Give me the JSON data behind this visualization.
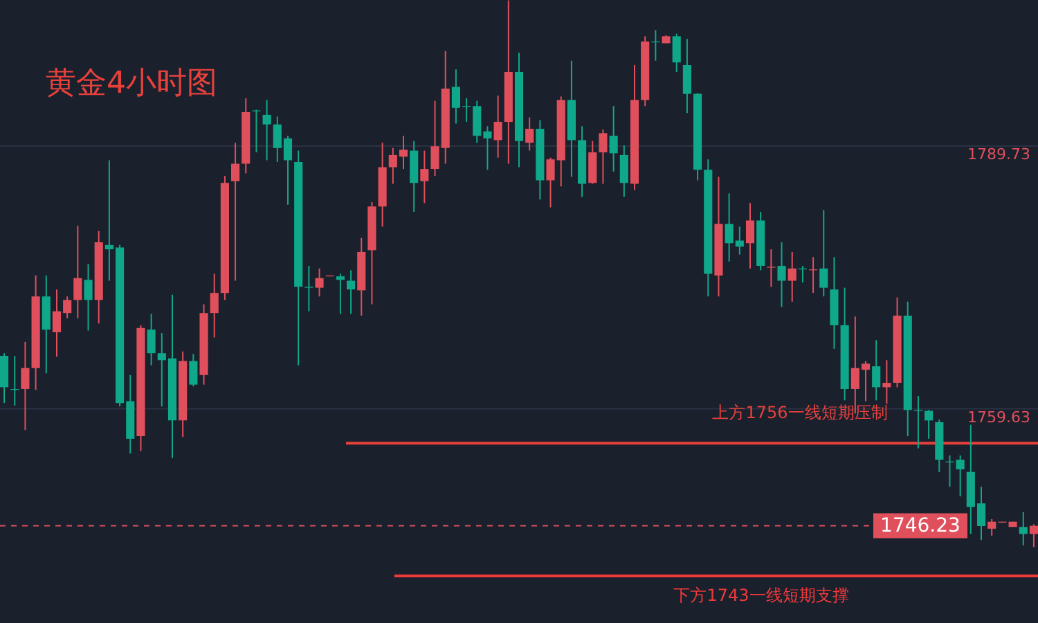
{
  "chart_data": {
    "type": "candlestick",
    "title": "黄金4小时图",
    "categories": [
      null,
      null,
      null,
      null,
      null,
      null,
      null,
      null,
      null,
      null,
      null,
      null,
      null,
      null,
      null,
      null,
      null,
      null,
      null,
      null,
      null,
      null,
      null,
      null,
      null,
      null,
      null,
      null,
      null,
      null,
      null,
      null,
      null,
      null,
      null,
      null,
      null,
      null,
      null,
      null,
      null,
      null,
      null,
      null,
      null,
      null,
      null,
      null,
      null,
      null,
      null,
      null,
      null,
      null,
      null,
      null,
      null,
      null,
      null,
      null,
      null,
      null,
      null,
      null,
      null,
      null,
      null,
      null,
      null,
      null,
      null,
      null,
      null,
      null,
      null,
      null,
      null,
      null,
      null,
      null,
      null,
      null,
      null,
      null,
      null,
      null,
      null,
      null,
      null,
      null,
      null,
      null,
      null,
      null,
      null,
      null,
      null,
      null,
      null
    ],
    "ohlc": [
      [
        1765.7,
        1766.0,
        1760.3,
        1762.1
      ],
      [
        1761.9,
        1765.7,
        1760.0,
        1761.8
      ],
      [
        1761.9,
        1767.3,
        1757.2,
        1764.3
      ],
      [
        1764.3,
        1774.9,
        1761.8,
        1772.5
      ],
      [
        1772.5,
        1774.9,
        1763.7,
        1768.7
      ],
      [
        1768.4,
        1773.3,
        1765.6,
        1770.8
      ],
      [
        1770.6,
        1772.5,
        1770.0,
        1772.1
      ],
      [
        1772.1,
        1780.6,
        1770.0,
        1774.6
      ],
      [
        1774.4,
        1776.2,
        1768.6,
        1772.1
      ],
      [
        1772.1,
        1780.0,
        1769.4,
        1778.7
      ],
      [
        1778.4,
        1788.1,
        1774.3,
        1777.9
      ],
      [
        1778.1,
        1778.4,
        1759.9,
        1760.3
      ],
      [
        1760.5,
        1763.5,
        1754.5,
        1756.2
      ],
      [
        1756.5,
        1769.2,
        1754.8,
        1768.9
      ],
      [
        1768.7,
        1770.5,
        1764.6,
        1766.0
      ],
      [
        1766.0,
        1768.3,
        1759.9,
        1765.2
      ],
      [
        1765.4,
        1772.7,
        1754.0,
        1758.3
      ],
      [
        1758.3,
        1766.2,
        1756.4,
        1765.1
      ],
      [
        1765.1,
        1765.9,
        1762.2,
        1762.4
      ],
      [
        1763.5,
        1771.6,
        1762.4,
        1770.6
      ],
      [
        1770.6,
        1775.1,
        1767.8,
        1772.9
      ],
      [
        1772.9,
        1786.3,
        1772.1,
        1785.5
      ],
      [
        1785.7,
        1790.1,
        1774.3,
        1787.7
      ],
      [
        1787.7,
        1795.2,
        1786.6,
        1793.6
      ],
      [
        1793.8,
        1793.9,
        1789.0,
        1793.7
      ],
      [
        1793.3,
        1795.0,
        1788.1,
        1792.2
      ],
      [
        1792.2,
        1793.1,
        1787.9,
        1789.5
      ],
      [
        1790.6,
        1790.9,
        1783.0,
        1788.1
      ],
      [
        1787.9,
        1789.2,
        1764.6,
        1773.6
      ],
      [
        1773.6,
        1776.0,
        1770.8,
        1773.5
      ],
      [
        1773.5,
        1775.7,
        1772.5,
        1774.6
      ],
      [
        1774.8,
        1774.9,
        1774.8,
        1774.9
      ],
      [
        1774.8,
        1775.1,
        1770.5,
        1774.4
      ],
      [
        1774.3,
        1775.5,
        1770.5,
        1773.3
      ],
      [
        1773.2,
        1779.2,
        1770.3,
        1777.6
      ],
      [
        1777.8,
        1783.3,
        1771.6,
        1782.8
      ],
      [
        1782.8,
        1790.1,
        1780.5,
        1787.3
      ],
      [
        1787.3,
        1789.5,
        1785.4,
        1788.7
      ],
      [
        1788.5,
        1790.9,
        1787.1,
        1789.3
      ],
      [
        1789.2,
        1790.3,
        1782.2,
        1785.5
      ],
      [
        1785.7,
        1789.2,
        1783.2,
        1787.1
      ],
      [
        1787.1,
        1794.9,
        1786.3,
        1789.7
      ],
      [
        1789.5,
        1800.6,
        1787.7,
        1796.3
      ],
      [
        1796.5,
        1798.5,
        1792.3,
        1794.1
      ],
      [
        1794.3,
        1795.2,
        1792.5,
        1794.2
      ],
      [
        1794.3,
        1794.9,
        1790.1,
        1790.9
      ],
      [
        1791.4,
        1792.0,
        1787.0,
        1790.6
      ],
      [
        1790.4,
        1795.5,
        1788.4,
        1792.5
      ],
      [
        1792.5,
        1806.4,
        1787.7,
        1798.2
      ],
      [
        1798.2,
        1800.4,
        1787.3,
        1790.3
      ],
      [
        1790.1,
        1793.0,
        1789.2,
        1791.7
      ],
      [
        1791.7,
        1792.7,
        1783.6,
        1785.8
      ],
      [
        1785.8,
        1788.4,
        1782.7,
        1788.2
      ],
      [
        1788.1,
        1795.4,
        1785.1,
        1795.0
      ],
      [
        1795.0,
        1799.5,
        1786.2,
        1790.4
      ],
      [
        1790.4,
        1792.0,
        1783.9,
        1785.4
      ],
      [
        1785.5,
        1790.3,
        1785.4,
        1789.0
      ],
      [
        1789.0,
        1791.6,
        1785.4,
        1791.2
      ],
      [
        1790.9,
        1794.3,
        1786.8,
        1788.9
      ],
      [
        1788.7,
        1789.8,
        1783.9,
        1785.5
      ],
      [
        1785.4,
        1799.0,
        1784.7,
        1795.0
      ],
      [
        1795.0,
        1802.3,
        1794.3,
        1801.7
      ],
      [
        1801.7,
        1803.0,
        1799.5,
        1801.6
      ],
      [
        1801.5,
        1802.4,
        1801.5,
        1802.3
      ],
      [
        1802.3,
        1802.6,
        1798.2,
        1799.3
      ],
      [
        1799.0,
        1802.0,
        1793.5,
        1795.7
      ],
      [
        1795.7,
        1795.8,
        1785.8,
        1787.0
      ],
      [
        1787.0,
        1788.2,
        1772.5,
        1775.1
      ],
      [
        1774.9,
        1786.2,
        1772.5,
        1780.8
      ],
      [
        1780.8,
        1784.3,
        1776.5,
        1778.6
      ],
      [
        1778.9,
        1780.5,
        1777.3,
        1778.2
      ],
      [
        1778.6,
        1783.2,
        1775.7,
        1781.2
      ],
      [
        1781.2,
        1782.2,
        1775.5,
        1776.0
      ],
      [
        1775.8,
        1777.9,
        1773.6,
        1775.9
      ],
      [
        1776.0,
        1778.7,
        1771.3,
        1774.3
      ],
      [
        1774.3,
        1777.6,
        1771.9,
        1775.7
      ],
      [
        1775.7,
        1776.0,
        1774.1,
        1775.6
      ],
      [
        1775.5,
        1777.0,
        1772.9,
        1775.6
      ],
      [
        1775.7,
        1782.4,
        1772.5,
        1773.5
      ],
      [
        1773.3,
        1777.0,
        1766.5,
        1769.2
      ],
      [
        1769.2,
        1773.5,
        1760.6,
        1761.9
      ],
      [
        1761.9,
        1770.2,
        1759.1,
        1764.3
      ],
      [
        1764.1,
        1765.1,
        1760.5,
        1764.8
      ],
      [
        1764.5,
        1767.5,
        1760.6,
        1762.1
      ],
      [
        1762.1,
        1765.2,
        1760.2,
        1762.6
      ],
      [
        1762.6,
        1772.4,
        1762.1,
        1770.3
      ],
      [
        1770.3,
        1771.9,
        1756.5,
        1759.5
      ],
      [
        1759.5,
        1761.1,
        1755.1,
        1759.4
      ],
      [
        1759.4,
        1759.5,
        1756.2,
        1758.3
      ],
      [
        1758.1,
        1758.4,
        1752.4,
        1753.8
      ],
      [
        1753.6,
        1754.3,
        1750.7,
        1753.5
      ],
      [
        1753.8,
        1754.3,
        1749.6,
        1752.7
      ],
      [
        1752.4,
        1757.8,
        1745.3,
        1748.4
      ],
      [
        1748.8,
        1750.7,
        1744.6,
        1746.2
      ],
      [
        1745.9,
        1747.0,
        1745.1,
        1746.7
      ],
      [
        1746.6,
        1746.7,
        1746.6,
        1746.7
      ],
      [
        1746.1,
        1746.7,
        1746.1,
        1746.7
      ],
      [
        1746.1,
        1747.8,
        1744.0,
        1745.3
      ],
      [
        1745.3,
        1746.4,
        1743.8,
        1746.23
      ]
    ],
    "colors": [
      "#0fa88a",
      "#0fa88a",
      "#e0505c",
      "#e0505c",
      "#0fa88a",
      "#e0505c",
      "#e0505c",
      "#e0505c",
      "#0fa88a",
      "#e0505c",
      "#0fa88a",
      "#0fa88a",
      "#0fa88a",
      "#e0505c",
      "#0fa88a",
      "#0fa88a",
      "#0fa88a",
      "#e0505c",
      "#0fa88a",
      "#e0505c",
      "#e0505c",
      "#e0505c",
      "#e0505c",
      "#e0505c",
      "#0fa88a",
      "#0fa88a",
      "#0fa88a",
      "#0fa88a",
      "#0fa88a",
      "#0fa88a",
      "#e0505c",
      "#e0505c",
      "#0fa88a",
      "#0fa88a",
      "#e0505c",
      "#e0505c",
      "#e0505c",
      "#e0505c",
      "#e0505c",
      "#0fa88a",
      "#e0505c",
      "#e0505c",
      "#e0505c",
      "#0fa88a",
      "#0fa88a",
      "#0fa88a",
      "#0fa88a",
      "#e0505c",
      "#e0505c",
      "#0fa88a",
      "#e0505c",
      "#0fa88a",
      "#e0505c",
      "#e0505c",
      "#0fa88a",
      "#0fa88a",
      "#e0505c",
      "#e0505c",
      "#0fa88a",
      "#0fa88a",
      "#e0505c",
      "#e0505c",
      "#0fa88a",
      "#e0505c",
      "#0fa88a",
      "#0fa88a",
      "#0fa88a",
      "#0fa88a",
      "#e0505c",
      "#0fa88a",
      "#0fa88a",
      "#e0505c",
      "#0fa88a",
      "#e0505c",
      "#0fa88a",
      "#e0505c",
      "#0fa88a",
      "#e0505c",
      "#0fa88a",
      "#0fa88a",
      "#0fa88a",
      "#e0505c",
      "#e0505c",
      "#0fa88a",
      "#e0505c",
      "#e0505c",
      "#0fa88a",
      "#0fa88a",
      "#0fa88a",
      "#0fa88a",
      "#0fa88a",
      "#0fa88a",
      "#0fa88a",
      "#0fa88a",
      "#e0505c",
      "#e0505c",
      "#e0505c",
      "#0fa88a",
      "#e0505c"
    ],
    "ylim": [
      1735.1,
      1806.45
    ],
    "yticks": [
      1789.73,
      1759.63
    ],
    "tick_labels": "y",
    "grid": "y",
    "ref_lines": [
      {
        "axis": "y",
        "value": 1755.7,
        "label": "上方1756一线短期压制",
        "color": "#e8413c"
      },
      {
        "axis": "y",
        "value": 1740.5,
        "label": "下方1743一线短期支撑",
        "color": "#f03a3a"
      },
      {
        "axis": "y",
        "value": 1746.23,
        "label": "1746.23",
        "color": "#e0505c",
        "line_style": "dashed"
      }
    ]
  }
}
